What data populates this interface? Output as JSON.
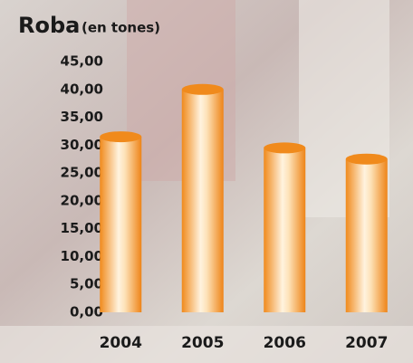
{
  "chart_data": {
    "type": "bar",
    "title": "Roba",
    "subtitle": "(en tones)",
    "categories": [
      "2004",
      "2005",
      "2006",
      "2007"
    ],
    "values": [
      31.5,
      40,
      29.5,
      27.5
    ],
    "color": "#f08a1c",
    "ylim": [
      0,
      45
    ],
    "yticks": [
      {
        "value": 0,
        "label": "0,00"
      },
      {
        "value": 5,
        "label": "5,00"
      },
      {
        "value": 10,
        "label": "10,00"
      },
      {
        "value": 15,
        "label": "15,00"
      },
      {
        "value": 20,
        "label": "20,00"
      },
      {
        "value": 25,
        "label": "25,00"
      },
      {
        "value": 30,
        "label": "30,00"
      },
      {
        "value": 35,
        "label": "35,00"
      },
      {
        "value": 40,
        "label": "40,00"
      },
      {
        "value": 45,
        "label": "45,00"
      }
    ],
    "grid": false
  }
}
